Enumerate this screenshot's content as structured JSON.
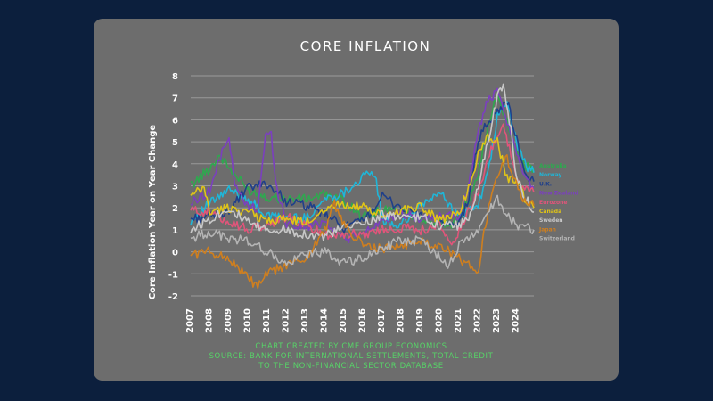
{
  "colors": {
    "page_background": "#0c1f3d",
    "card_background": "#6d6d6d",
    "gridline": "#9a9a9a",
    "text": "#ffffff",
    "note_text": "#57d468"
  },
  "chart_data": {
    "type": "line",
    "title": "CORE INFLATION",
    "xlabel": "",
    "ylabel": "Core Inflation Year on Year Change",
    "xlim": [
      2007,
      2024.9
    ],
    "ylim": [
      -2,
      8
    ],
    "y_ticks": [
      "-2",
      "-1",
      "0",
      "1",
      "2",
      "3",
      "4",
      "5",
      "6",
      "7",
      "8"
    ],
    "x_ticks": [
      "2007",
      "2008",
      "2009",
      "2010",
      "2011",
      "2012",
      "2013",
      "2014",
      "2015",
      "2016",
      "2017",
      "2018",
      "2019",
      "2020",
      "2021",
      "2022",
      "2023",
      "2024"
    ],
    "grid": "horizontal",
    "legend_placement": "right",
    "series": [
      {
        "name": "Australia",
        "color": "#2fa84f",
        "points": [
          [
            2007,
            3.0
          ],
          [
            2008,
            3.8
          ],
          [
            2008.5,
            4.4
          ],
          [
            2009,
            3.8
          ],
          [
            2010,
            2.8
          ],
          [
            2011,
            2.5
          ],
          [
            2012,
            2.4
          ],
          [
            2013,
            2.4
          ],
          [
            2014,
            2.6
          ],
          [
            2015,
            2.3
          ],
          [
            2016,
            1.6
          ],
          [
            2017,
            1.9
          ],
          [
            2018,
            1.9
          ],
          [
            2019,
            1.5
          ],
          [
            2020,
            1.3
          ],
          [
            2020.7,
            1.2
          ],
          [
            2021,
            1.6
          ],
          [
            2021.5,
            2.4
          ],
          [
            2022,
            3.6
          ],
          [
            2022.5,
            5.6
          ],
          [
            2023,
            7.2
          ],
          [
            2023.2,
            6.6
          ],
          [
            2023.5,
            5.9
          ],
          [
            2024,
            4.4
          ],
          [
            2024.5,
            3.9
          ],
          [
            2024.9,
            3.8
          ]
        ]
      },
      {
        "name": "Norway",
        "color": "#1fb6d8",
        "points": [
          [
            2007,
            1.4
          ],
          [
            2008,
            2.2
          ],
          [
            2009,
            2.8
          ],
          [
            2010,
            2.4
          ],
          [
            2011,
            1.6
          ],
          [
            2012,
            1.6
          ],
          [
            2013,
            1.5
          ],
          [
            2014,
            2.4
          ],
          [
            2015,
            2.7
          ],
          [
            2016,
            3.4
          ],
          [
            2016.6,
            3.6
          ],
          [
            2017,
            1.4
          ],
          [
            2018,
            1.2
          ],
          [
            2019,
            2.1
          ],
          [
            2020,
            2.7
          ],
          [
            2021,
            1.6
          ],
          [
            2022,
            2.2
          ],
          [
            2022.5,
            3.5
          ],
          [
            2023,
            6.1
          ],
          [
            2023.5,
            6.8
          ],
          [
            2024,
            4.9
          ],
          [
            2024.5,
            3.9
          ],
          [
            2024.9,
            3.6
          ]
        ]
      },
      {
        "name": "U.K.",
        "color": "#1f3f8a",
        "points": [
          [
            2007,
            1.5
          ],
          [
            2008,
            1.6
          ],
          [
            2009,
            1.9
          ],
          [
            2010,
            2.9
          ],
          [
            2011,
            3.1
          ],
          [
            2012,
            2.3
          ],
          [
            2013,
            2.1
          ],
          [
            2014,
            1.7
          ],
          [
            2015,
            1.1
          ],
          [
            2016,
            1.4
          ],
          [
            2017,
            2.5
          ],
          [
            2018,
            2.0
          ],
          [
            2019,
            1.7
          ],
          [
            2020,
            1.4
          ],
          [
            2020.7,
            1.1
          ],
          [
            2021,
            1.3
          ],
          [
            2021.5,
            2.4
          ],
          [
            2022,
            5.1
          ],
          [
            2022.5,
            5.9
          ],
          [
            2023,
            6.3
          ],
          [
            2023.5,
            6.9
          ],
          [
            2024,
            5.1
          ],
          [
            2024.5,
            3.4
          ],
          [
            2024.9,
            3.2
          ]
        ]
      },
      {
        "name": "New Zealand",
        "color": "#7b3fbf",
        "points": [
          [
            2007,
            2.2
          ],
          [
            2008,
            2.8
          ],
          [
            2008.8,
            5.0
          ],
          [
            2009,
            5.2
          ],
          [
            2009.3,
            3.0
          ],
          [
            2010,
            2.0
          ],
          [
            2010.5,
            2.0
          ],
          [
            2010.9,
            5.3
          ],
          [
            2011.2,
            5.3
          ],
          [
            2011.5,
            2.8
          ],
          [
            2012,
            1.3
          ],
          [
            2013,
            1.1
          ],
          [
            2014,
            1.4
          ],
          [
            2015,
            0.6
          ],
          [
            2016,
            0.8
          ],
          [
            2017,
            1.5
          ],
          [
            2018,
            1.7
          ],
          [
            2019,
            1.5
          ],
          [
            2020,
            1.6
          ],
          [
            2021,
            1.6
          ],
          [
            2021.5,
            3.0
          ],
          [
            2022,
            5.5
          ],
          [
            2022.5,
            6.9
          ],
          [
            2023,
            7.2
          ],
          [
            2023.5,
            5.9
          ],
          [
            2024,
            4.4
          ],
          [
            2024.5,
            3.4
          ],
          [
            2024.9,
            2.9
          ]
        ]
      },
      {
        "name": "Eurozone",
        "color": "#e0557a",
        "points": [
          [
            2007,
            1.9
          ],
          [
            2008,
            1.8
          ],
          [
            2009,
            1.4
          ],
          [
            2010,
            1.0
          ],
          [
            2011,
            1.2
          ],
          [
            2012,
            1.6
          ],
          [
            2013,
            1.2
          ],
          [
            2014,
            0.8
          ],
          [
            2015,
            0.8
          ],
          [
            2016,
            0.8
          ],
          [
            2017,
            1.0
          ],
          [
            2018,
            1.1
          ],
          [
            2019,
            1.0
          ],
          [
            2020,
            1.2
          ],
          [
            2020.7,
            0.3
          ],
          [
            2021,
            0.9
          ],
          [
            2021.5,
            1.8
          ],
          [
            2022,
            2.7
          ],
          [
            2022.5,
            4.3
          ],
          [
            2023,
            5.3
          ],
          [
            2023.3,
            5.7
          ],
          [
            2023.7,
            4.5
          ],
          [
            2024,
            3.3
          ],
          [
            2024.5,
            2.8
          ],
          [
            2024.9,
            2.7
          ]
        ]
      },
      {
        "name": "Canada",
        "color": "#e0c418",
        "points": [
          [
            2007,
            2.5
          ],
          [
            2007.7,
            2.9
          ],
          [
            2008,
            1.8
          ],
          [
            2009,
            2.0
          ],
          [
            2010,
            1.8
          ],
          [
            2011,
            1.4
          ],
          [
            2012,
            1.5
          ],
          [
            2013,
            1.3
          ],
          [
            2014,
            2.0
          ],
          [
            2015,
            2.2
          ],
          [
            2016,
            2.0
          ],
          [
            2017,
            1.6
          ],
          [
            2018,
            1.9
          ],
          [
            2019,
            2.1
          ],
          [
            2020,
            1.4
          ],
          [
            2021,
            1.8
          ],
          [
            2021.5,
            2.9
          ],
          [
            2022,
            4.4
          ],
          [
            2022.5,
            5.3
          ],
          [
            2023,
            5.0
          ],
          [
            2023.5,
            3.3
          ],
          [
            2024,
            3.3
          ],
          [
            2024.5,
            2.3
          ],
          [
            2024.9,
            2.0
          ]
        ]
      },
      {
        "name": "Sweden",
        "color": "#c8c8c8",
        "points": [
          [
            2007,
            1.0
          ],
          [
            2008,
            1.5
          ],
          [
            2009,
            2.0
          ],
          [
            2010,
            1.3
          ],
          [
            2011,
            1.0
          ],
          [
            2012,
            1.0
          ],
          [
            2013,
            0.8
          ],
          [
            2014,
            0.7
          ],
          [
            2015,
            1.1
          ],
          [
            2016,
            1.3
          ],
          [
            2017,
            1.7
          ],
          [
            2018,
            1.5
          ],
          [
            2019,
            1.6
          ],
          [
            2020,
            1.2
          ],
          [
            2021,
            1.2
          ],
          [
            2021.5,
            1.5
          ],
          [
            2022,
            3.0
          ],
          [
            2022.5,
            5.0
          ],
          [
            2023,
            7.0
          ],
          [
            2023.3,
            7.7
          ],
          [
            2023.7,
            5.5
          ],
          [
            2024,
            3.4
          ],
          [
            2024.5,
            2.4
          ],
          [
            2024.9,
            1.8
          ]
        ]
      },
      {
        "name": "Japan",
        "color": "#cf7f1f",
        "points": [
          [
            2007,
            -0.1
          ],
          [
            2008,
            0.0
          ],
          [
            2009,
            -0.3
          ],
          [
            2010,
            -1.2
          ],
          [
            2010.5,
            -1.6
          ],
          [
            2011,
            -1.0
          ],
          [
            2012,
            -0.6
          ],
          [
            2013,
            -0.3
          ],
          [
            2014,
            1.0
          ],
          [
            2014.5,
            2.2
          ],
          [
            2015,
            1.2
          ],
          [
            2016,
            0.3
          ],
          [
            2017,
            0.1
          ],
          [
            2018,
            0.3
          ],
          [
            2019,
            0.5
          ],
          [
            2020,
            0.3
          ],
          [
            2021,
            -0.3
          ],
          [
            2021.5,
            -0.6
          ],
          [
            2022,
            -1.0
          ],
          [
            2022.3,
            1.0
          ],
          [
            2022.7,
            2.5
          ],
          [
            2023,
            3.5
          ],
          [
            2023.5,
            4.3
          ],
          [
            2024,
            3.0
          ],
          [
            2024.5,
            2.2
          ],
          [
            2024.9,
            2.1
          ]
        ]
      },
      {
        "name": "Switzerland",
        "color": "#b4b4b4",
        "points": [
          [
            2007,
            0.6
          ],
          [
            2008,
            0.9
          ],
          [
            2009,
            0.6
          ],
          [
            2010,
            0.5
          ],
          [
            2011,
            0.0
          ],
          [
            2012,
            -0.6
          ],
          [
            2013,
            -0.1
          ],
          [
            2014,
            0.0
          ],
          [
            2015,
            -0.5
          ],
          [
            2016,
            -0.3
          ],
          [
            2017,
            0.2
          ],
          [
            2018,
            0.5
          ],
          [
            2019,
            0.5
          ],
          [
            2020,
            -0.2
          ],
          [
            2020.5,
            -0.6
          ],
          [
            2021,
            0.3
          ],
          [
            2022,
            1.0
          ],
          [
            2022.5,
            1.8
          ],
          [
            2023,
            2.4
          ],
          [
            2023.5,
            1.7
          ],
          [
            2024,
            1.2
          ],
          [
            2024.5,
            1.1
          ],
          [
            2024.9,
            1.0
          ]
        ]
      }
    ],
    "notes": [
      "CHART CREATED BY CME GROUP ECONOMICS",
      "SOURCE: BANK FOR INTERNATIONAL SETTLEMENTS, TOTAL CREDIT",
      "TO THE NON-FINANCIAL SECTOR DATABASE"
    ]
  }
}
